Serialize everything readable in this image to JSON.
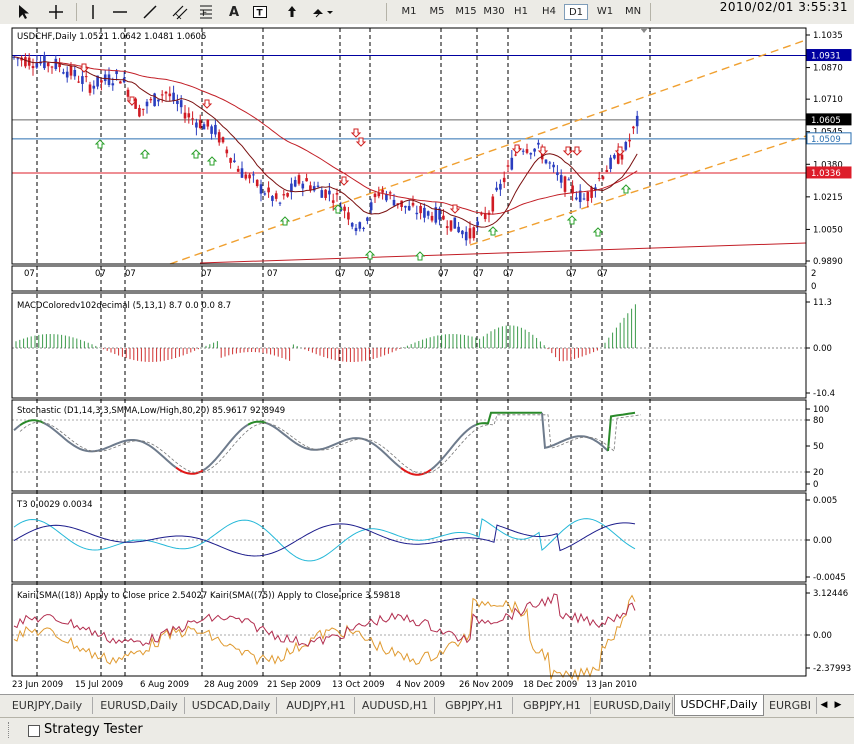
{
  "toolbar": {
    "timeframes": [
      "M1",
      "M5",
      "M15",
      "M30",
      "H1",
      "H4",
      "D1",
      "W1",
      "MN"
    ],
    "active_timeframe": "D1",
    "datetime": "2010/02/01  3:55:31",
    "font_tool_label": "A"
  },
  "main_chart": {
    "title": "USDCHF,Daily  1.0521 1.0642 1.0481 1.0605",
    "price_ticks": [
      "1.1035",
      "1.0870",
      "1.0710",
      "1.0545",
      "1.0380",
      "1.0215",
      "1.0050",
      "0.9890"
    ],
    "price_tags": [
      {
        "label": "1.0931",
        "value": 1.0931,
        "color": "#0000a0",
        "text_color": "#ffffff"
      },
      {
        "label": "1.0605",
        "value": 1.0605,
        "color": "#000000",
        "text_color": "#ffffff"
      },
      {
        "label": "1.0509",
        "value": 1.0509,
        "color": "#ffffff",
        "text_color": "#2a6fb0"
      },
      {
        "label": "1.0336",
        "value": 1.0336,
        "color": "#dd1d2a",
        "text_color": "#ffffff"
      }
    ],
    "sub_strip_labels": [
      "07",
      "07",
      "07",
      "07",
      "07",
      "07",
      "07",
      "07",
      "07",
      "07",
      "07",
      "07",
      "07"
    ],
    "sub_strip_scale": [
      "2",
      "0"
    ]
  },
  "macd": {
    "title": "MACDColoredv102decimal (5,13,1) 8.7 0.0 0.0 8.7",
    "ticks": [
      "11.3",
      "0.00",
      "-10.4"
    ]
  },
  "stochastic": {
    "title": "Stochastic (D1,14,3,3,SMMA,Low/High,80,20) 85.9617 92.8949",
    "ticks": [
      "100",
      "80",
      "50",
      "20",
      "0"
    ]
  },
  "t3": {
    "title": "T3 0.0029 0.0034",
    "ticks": [
      "0.005",
      "0.00",
      "-0.0045"
    ]
  },
  "kairi": {
    "title": "Kairi(SMA((18)) Apply to Close price 2.54027  Kairi(SMA((75)) Apply to Close price 3.59818",
    "ticks": [
      "3.12446",
      "0.00",
      "-2.37993"
    ]
  },
  "date_axis": [
    "23 Jun 2009",
    "15 Jul 2009",
    "6 Aug 2009",
    "28 Aug 2009",
    "21 Sep 2009",
    "13 Oct 2009",
    "4 Nov 2009",
    "26 Nov 2009",
    "18 Dec 2009",
    "13 Jan 2010"
  ],
  "tabs": [
    "EURJPY,Daily",
    "EURUSD,Daily",
    "USDCAD,Daily",
    "AUDJPY,H1",
    "AUDUSD,H1",
    "GBPJPY,H1",
    "GBPJPY,H1",
    "EURUSD,Daily",
    "USDCHF,Daily",
    "EURGBI"
  ],
  "active_tab": "USDCHF,Daily",
  "strategy_tester": {
    "label": "Strategy Tester"
  },
  "colors": {
    "bull": "#2a3dbf",
    "bear": "#d01b24",
    "ma_long": "#c21e26",
    "ma_short": "#7a1010",
    "channel": "#f0a030",
    "macd_pos": "#3a9a4a",
    "macd_neg": "#d03030",
    "stoch": "#6e7b8c",
    "t3_fast": "#25b8d8",
    "t3_slow": "#1d1d8c",
    "kairi_a": "#b22d4e",
    "kairi_b": "#e09a30"
  }
}
